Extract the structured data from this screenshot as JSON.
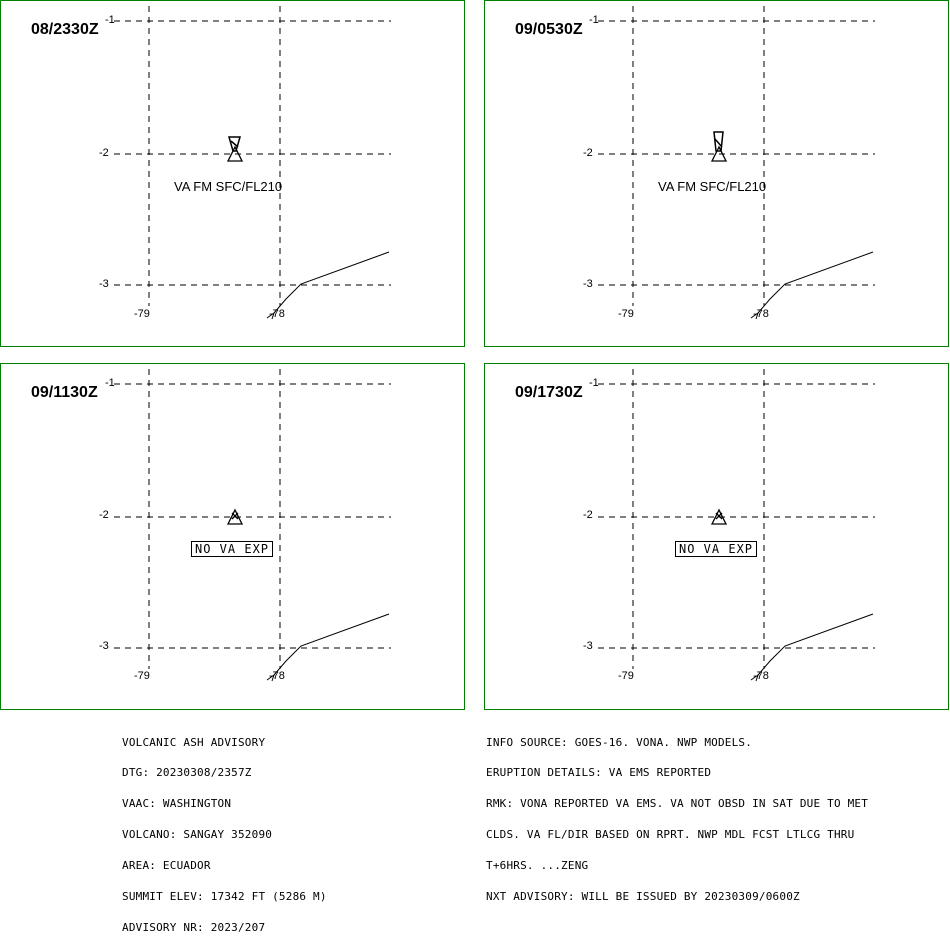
{
  "panels": [
    {
      "time": "08/2330Z",
      "label": "VA FM SFC/FL210",
      "no_va": null,
      "ash": "plume"
    },
    {
      "time": "09/0530Z",
      "label": "VA FM SFC/FL210",
      "no_va": null,
      "ash": "plume"
    },
    {
      "time": "09/1130Z",
      "label": null,
      "no_va": "NO VA EXP",
      "ash": "none"
    },
    {
      "time": "09/1730Z",
      "label": null,
      "no_va": "NO VA EXP",
      "ash": "none"
    }
  ],
  "axis_labels": {
    "lat_1": "-1",
    "lat_2": "-2",
    "lat_3": "-3",
    "lon_79": "-79",
    "lon_78": "-78"
  },
  "advisory_left": [
    "VOLCANIC ASH ADVISORY",
    "DTG: 20230308/2357Z",
    "VAAC: WASHINGTON",
    "VOLCANO: SANGAY 352090",
    "AREA: ECUADOR",
    "SUMMIT ELEV: 17342 FT (5286 M)",
    "ADVISORY NR: 2023/207"
  ],
  "advisory_right": [
    "INFO SOURCE: GOES-16. VONA. NWP MODELS.",
    "ERUPTION DETAILS: VA EMS REPORTED",
    "RMK: VONA REPORTED VA EMS. VA NOT OBSD IN SAT DUE TO MET",
    "CLDS. VA FL/DIR BASED ON RPRT. NWP MDL FCST LTLCG THRU",
    "T+6HRS. ...ZENG",
    "NXT ADVISORY: WILL BE ISSUED BY 20230309/0600Z"
  ],
  "colors": {
    "border": "#008000",
    "lines": "#000000"
  }
}
